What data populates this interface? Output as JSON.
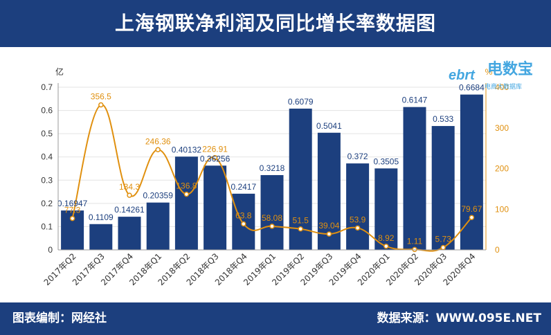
{
  "header": {
    "title": "上海钢联净利润及同比增长率数据图"
  },
  "footer": {
    "left": "图表编制：网经社",
    "right": "数据来源：WWW.095E.NET"
  },
  "watermark": {
    "brand": "电数宝",
    "tagline": "电商大数据库",
    "mark": "ebrt"
  },
  "chart_data": {
    "type": "bar+line",
    "categories": [
      "2017年Q2",
      "2017年Q3",
      "2017年Q4",
      "2018年Q1",
      "2018年Q2",
      "2018年Q3",
      "2018年Q4",
      "2019年Q1",
      "2019年Q2",
      "2019年Q3",
      "2019年Q4",
      "2020年Q1",
      "2020年Q2",
      "2020年Q3",
      "2020年Q4"
    ],
    "bars": {
      "values": [
        0.16947,
        0.1109,
        0.14261,
        0.20359,
        0.40132,
        0.36256,
        0.2417,
        0.3218,
        0.6079,
        0.5041,
        0.372,
        0.3505,
        0.6147,
        0.533,
        0.6684
      ],
      "labels": [
        "0.16947",
        "0.1109",
        "0.14261",
        "0.20359",
        "0.40132",
        "0.36256",
        "0.2417",
        "0.3218",
        "0.6079",
        "0.5041",
        "0.372",
        "0.3505",
        "0.6147",
        "0.533",
        "0.6684"
      ],
      "color": "#1c3f7e"
    },
    "line": {
      "values": [
        77.3,
        356.5,
        134.3,
        246.36,
        136.8,
        226.91,
        63.8,
        58.08,
        51.5,
        39.04,
        53.9,
        8.92,
        1.11,
        5.73,
        79.67
      ],
      "labels": [
        "77.3",
        "356.5",
        "134.3",
        "246.36",
        "136.8",
        "226.91",
        "63.8",
        "58.08",
        "51.5",
        "39.04",
        "53.9",
        "8.92",
        "1.11",
        "5.73",
        "79.67"
      ],
      "color": "#e0900f"
    },
    "y_left": {
      "unit": "亿",
      "min": 0,
      "max": 0.7,
      "ticks": [
        "0",
        "0.1",
        "0.2",
        "0.3",
        "0.4",
        "0.5",
        "0.6",
        "0.7"
      ]
    },
    "y_right": {
      "unit": "%",
      "min": 0,
      "max": 400,
      "ticks": [
        "0",
        "100",
        "200",
        "300",
        "400"
      ]
    },
    "grid": true
  }
}
